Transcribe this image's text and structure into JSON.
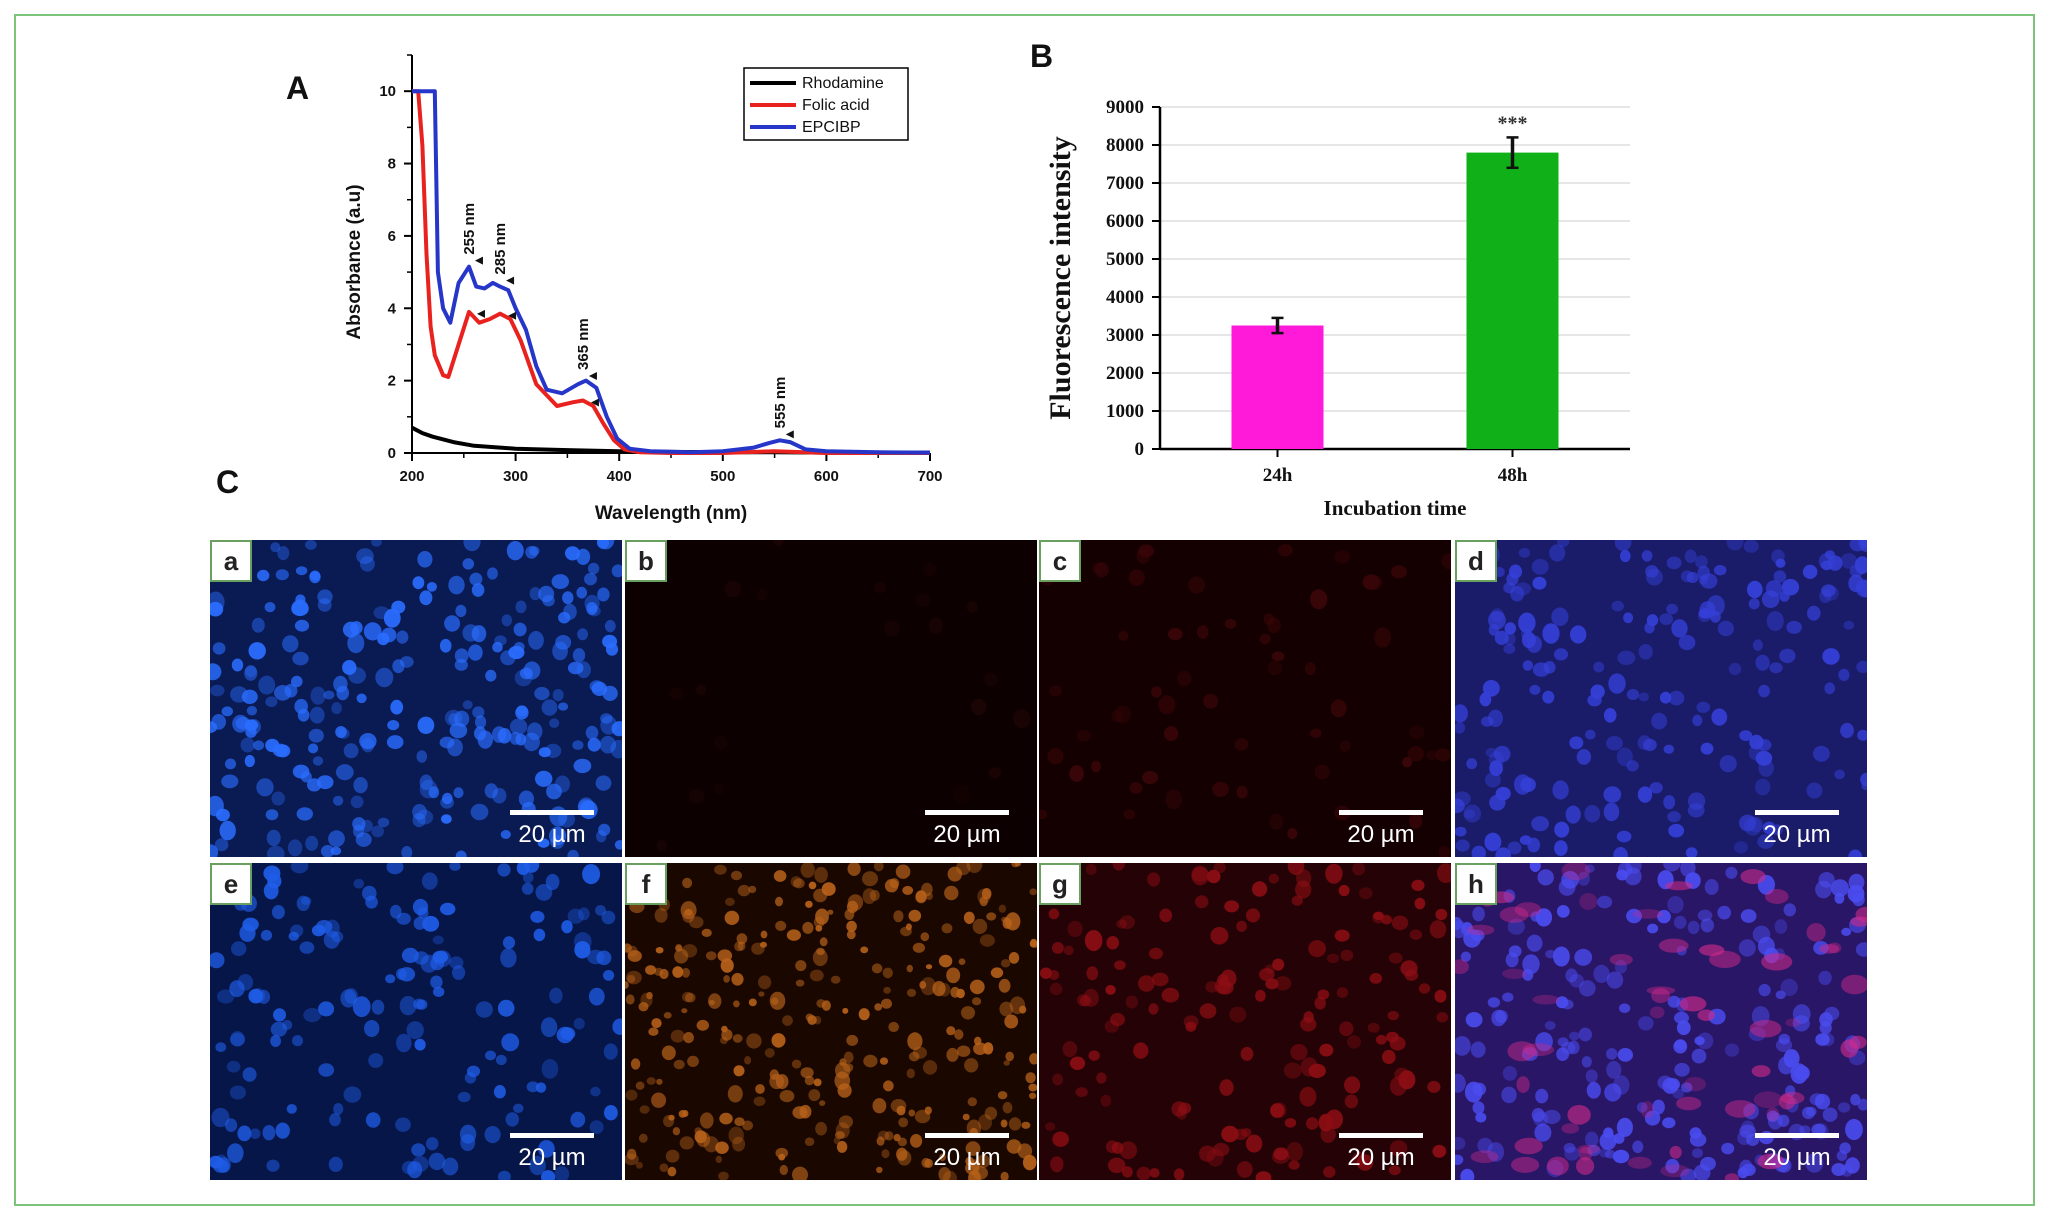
{
  "panels": {
    "A": "A",
    "B": "B",
    "C": "C"
  },
  "chart_data": [
    {
      "type": "line",
      "panel": "A",
      "xlabel": "Wavelength (nm)",
      "ylabel": "Absorbance (a.u)",
      "xlim": [
        200,
        700
      ],
      "ylim": [
        0,
        11
      ],
      "xticks": [
        "200",
        "300",
        "400",
        "500",
        "600",
        "700"
      ],
      "yticks": [
        "0",
        "2",
        "4",
        "6",
        "8",
        "10"
      ],
      "legend_position": "top-right",
      "series": [
        {
          "name": "Rhodamine",
          "color": "#000000",
          "x": [
            200,
            210,
            220,
            240,
            260,
            300,
            350,
            400,
            450,
            500,
            550,
            600,
            650,
            700
          ],
          "y": [
            0.7,
            0.55,
            0.45,
            0.3,
            0.2,
            0.12,
            0.08,
            0.05,
            0.03,
            0.02,
            0.02,
            0.01,
            0.01,
            0.01
          ]
        },
        {
          "name": "Folic acid",
          "color": "#e8221f",
          "x": [
            200,
            206,
            210,
            214,
            218,
            222,
            230,
            235,
            245,
            255,
            265,
            275,
            285,
            295,
            305,
            320,
            340,
            355,
            365,
            375,
            385,
            395,
            405,
            420,
            450,
            500,
            550,
            600,
            650,
            700
          ],
          "y": [
            10,
            10,
            8.5,
            5.5,
            3.5,
            2.7,
            2.15,
            2.1,
            3.0,
            3.9,
            3.6,
            3.7,
            3.85,
            3.7,
            3.1,
            1.9,
            1.3,
            1.4,
            1.45,
            1.3,
            0.8,
            0.35,
            0.1,
            0.02,
            0.0,
            0.0,
            0.05,
            0.0,
            0.0,
            0.0
          ]
        },
        {
          "name": "EPCIBP",
          "color": "#2636c8",
          "x": [
            200,
            210,
            218,
            222,
            225,
            230,
            237,
            245,
            255,
            262,
            270,
            278,
            285,
            293,
            300,
            310,
            320,
            330,
            345,
            360,
            368,
            378,
            388,
            398,
            410,
            430,
            470,
            500,
            530,
            545,
            555,
            565,
            580,
            600,
            650,
            700
          ],
          "y": [
            10,
            10,
            10,
            10,
            5.0,
            4.0,
            3.6,
            4.7,
            5.15,
            4.6,
            4.55,
            4.7,
            4.6,
            4.5,
            4.0,
            3.4,
            2.4,
            1.75,
            1.65,
            1.9,
            2.0,
            1.8,
            1.0,
            0.4,
            0.12,
            0.05,
            0.02,
            0.05,
            0.15,
            0.28,
            0.35,
            0.3,
            0.1,
            0.05,
            0.02,
            0.01
          ]
        }
      ],
      "annotations": [
        {
          "text": "255 nm",
          "x": 255
        },
        {
          "text": "285 nm",
          "x": 285
        },
        {
          "text": "365 nm",
          "x": 365
        },
        {
          "text": "555 nm",
          "x": 555
        }
      ]
    },
    {
      "type": "bar",
      "panel": "B",
      "categories": [
        "24h",
        "48h"
      ],
      "values": [
        3250,
        7800
      ],
      "errors": [
        200,
        400
      ],
      "colors": [
        "#ff19d9",
        "#10b018"
      ],
      "xlabel": "Incubation time",
      "ylabel": "Fluorescence intensity",
      "ylim": [
        0,
        9000
      ],
      "yticks": [
        "0",
        "1000",
        "2000",
        "3000",
        "4000",
        "5000",
        "6000",
        "7000",
        "8000",
        "9000"
      ],
      "significance": "***",
      "grid": true
    }
  ],
  "micrographs": [
    {
      "label": "a",
      "scale": "20 µm",
      "channel": "blue",
      "base": "#0a1a52",
      "spot": "#2a6dff",
      "spots": 260,
      "seed": 11
    },
    {
      "label": "b",
      "scale": "20 µm",
      "channel": "dark",
      "base": "#0d0000",
      "spot": "#1c0404",
      "spots": 20,
      "seed": 12
    },
    {
      "label": "c",
      "scale": "20 µm",
      "channel": "dark-red",
      "base": "#140001",
      "spot": "#3a0508",
      "spots": 60,
      "seed": 13
    },
    {
      "label": "d",
      "scale": "20 µm",
      "channel": "merge-blue",
      "base": "#1a1c6a",
      "spot": "#3540d8",
      "spots": 200,
      "seed": 14
    },
    {
      "label": "e",
      "scale": "20 µm",
      "channel": "blue",
      "base": "#071648",
      "spot": "#1f5de8",
      "spots": 170,
      "seed": 15
    },
    {
      "label": "f",
      "scale": "20 µm",
      "channel": "orange",
      "base": "#1a0800",
      "spot": "#b8621a",
      "spots": 320,
      "seed": 16
    },
    {
      "label": "g",
      "scale": "20 µm",
      "channel": "red",
      "base": "#250205",
      "spot": "#8c0e14",
      "spots": 160,
      "seed": 17
    },
    {
      "label": "h",
      "scale": "20 µm",
      "channel": "merge",
      "base": "#2a1666",
      "spot": "#4a4cf0",
      "spots": 220,
      "seed": 18,
      "accent": "#d02a8a"
    }
  ]
}
